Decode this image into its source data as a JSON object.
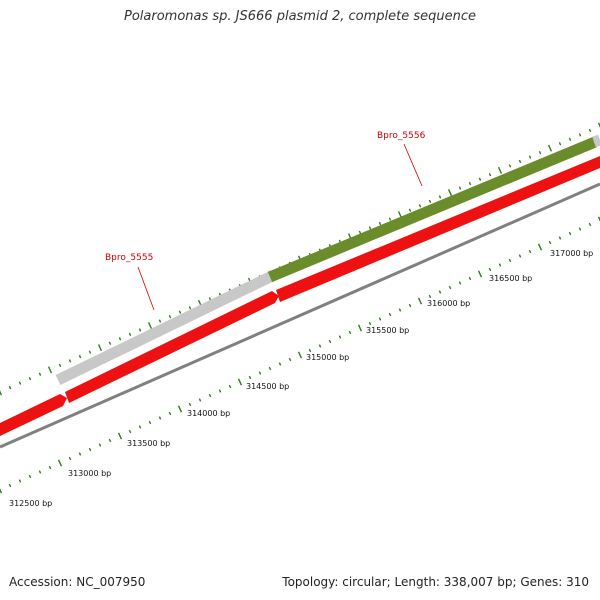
{
  "title": "Polaromonas sp. JS666 plasmid 2, complete sequence",
  "accession": "Accession: NC_007950",
  "summary": "Topology: circular; Length: 338,007 bp; Genes: 310",
  "colors": {
    "cds": "#ee1111",
    "gene_gray": "#c8c8c8",
    "gene_green": "#6a8c2a",
    "backbone": "#808080",
    "tick": "#2e7d1e",
    "gene_label": "#cc0000"
  },
  "scale": {
    "labels": [
      "312500 bp",
      "313000 bp",
      "313500 bp",
      "314000 bp",
      "314500 bp",
      "315000 bp",
      "315500 bp",
      "316000 bp",
      "316500 bp",
      "317000 bp"
    ]
  },
  "genes": [
    {
      "label": "Bpro_5555"
    },
    {
      "label": "Bpro_5556"
    }
  ]
}
